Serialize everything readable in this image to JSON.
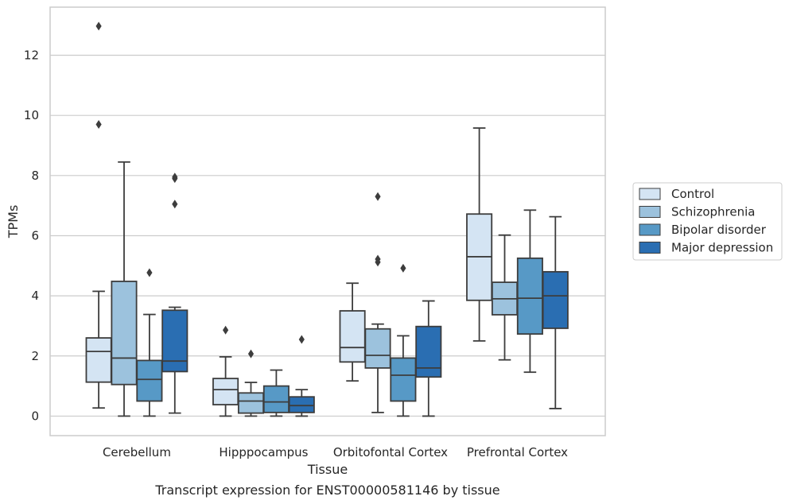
{
  "chart_data": {
    "type": "box",
    "xlabel": "Tissue",
    "ylabel": "TPMs",
    "caption": "Transcript expression for ENST00000581146 by tissue",
    "categories": [
      "Cerebellum",
      "Hipppocampus",
      "Orbitofontal Cortex",
      "Prefrontal Cortex"
    ],
    "ylim": [
      -0.65,
      13.6
    ],
    "yticks": [
      0,
      2,
      4,
      6,
      8,
      10,
      12
    ],
    "grid": "y",
    "legend_position": "right",
    "series": [
      {
        "name": "Control",
        "color": "#d4e4f3",
        "boxes": [
          {
            "whislo": 0.27,
            "q1": 1.13,
            "med": 2.15,
            "q3": 2.6,
            "whishi": 4.15,
            "fliers": [
              9.7,
              12.97
            ]
          },
          {
            "whislo": 0.0,
            "q1": 0.38,
            "med": 0.88,
            "q3": 1.25,
            "whishi": 1.97,
            "fliers": [
              2.86
            ]
          },
          {
            "whislo": 1.17,
            "q1": 1.8,
            "med": 2.28,
            "q3": 3.5,
            "whishi": 4.42,
            "fliers": []
          },
          {
            "whislo": 2.5,
            "q1": 3.85,
            "med": 5.3,
            "q3": 6.72,
            "whishi": 9.58,
            "fliers": []
          }
        ]
      },
      {
        "name": "Schizophrenia",
        "color": "#9cc2dd",
        "boxes": [
          {
            "whislo": 0.0,
            "q1": 1.05,
            "med": 1.93,
            "q3": 4.48,
            "whishi": 8.45,
            "fliers": []
          },
          {
            "whislo": 0.0,
            "q1": 0.1,
            "med": 0.5,
            "q3": 0.77,
            "whishi": 1.12,
            "fliers": [
              2.07
            ]
          },
          {
            "whislo": 0.12,
            "q1": 1.6,
            "med": 2.02,
            "q3": 2.9,
            "whishi": 3.06,
            "fliers": [
              5.12,
              5.22,
              7.3
            ]
          },
          {
            "whislo": 1.87,
            "q1": 3.37,
            "med": 3.9,
            "q3": 4.45,
            "whishi": 6.02,
            "fliers": []
          }
        ]
      },
      {
        "name": "Bipolar disorder",
        "color": "#5799c6",
        "boxes": [
          {
            "whislo": 0.0,
            "q1": 0.5,
            "med": 1.22,
            "q3": 1.85,
            "whishi": 3.38,
            "fliers": [
              4.77
            ]
          },
          {
            "whislo": 0.0,
            "q1": 0.12,
            "med": 0.47,
            "q3": 1.0,
            "whishi": 1.53,
            "fliers": []
          },
          {
            "whislo": 0.0,
            "q1": 0.5,
            "med": 1.36,
            "q3": 1.93,
            "whishi": 2.67,
            "fliers": [
              4.92
            ]
          },
          {
            "whislo": 1.46,
            "q1": 2.73,
            "med": 3.92,
            "q3": 5.25,
            "whishi": 6.85,
            "fliers": []
          }
        ]
      },
      {
        "name": "Major depression",
        "color": "#2a6eb2",
        "boxes": [
          {
            "whislo": 0.1,
            "q1": 1.48,
            "med": 1.83,
            "q3": 3.52,
            "whishi": 3.62,
            "fliers": [
              7.05,
              7.9,
              7.95
            ]
          },
          {
            "whislo": 0.0,
            "q1": 0.12,
            "med": 0.35,
            "q3": 0.64,
            "whishi": 0.88,
            "fliers": [
              2.55
            ]
          },
          {
            "whislo": 0.0,
            "q1": 1.3,
            "med": 1.6,
            "q3": 2.98,
            "whishi": 3.83,
            "fliers": []
          },
          {
            "whislo": 0.25,
            "q1": 2.92,
            "med": 4.0,
            "q3": 4.8,
            "whishi": 6.63,
            "fliers": []
          }
        ]
      }
    ]
  }
}
